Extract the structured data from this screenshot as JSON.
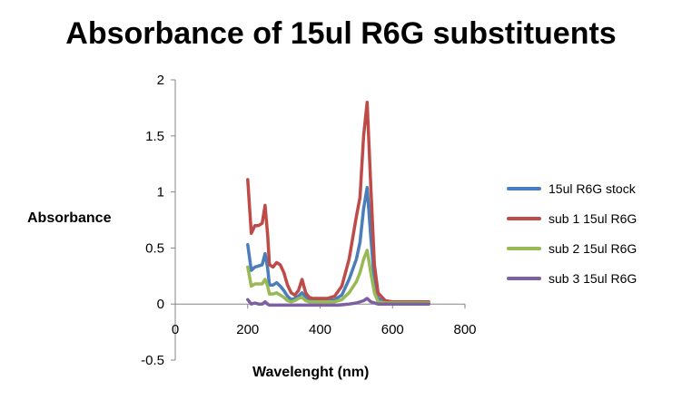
{
  "chart_data": {
    "type": "line",
    "title": "Absorbance of 15ul R6G substituents",
    "xlabel": "Wavelenght (nm)",
    "ylabel": "Absorbance",
    "xlim": [
      0,
      800
    ],
    "ylim": [
      -0.5,
      2
    ],
    "xticks": [
      "0",
      "200",
      "400",
      "600",
      "800"
    ],
    "yticks": [
      "2",
      "1.5",
      "1",
      "0.5",
      "0",
      "-0.5"
    ],
    "grid": false,
    "legend_position": "right",
    "series": [
      {
        "name": "15ul R6G stock",
        "color": "#4a7ebb",
        "points": [
          [
            200,
            0.53
          ],
          [
            210,
            0.3
          ],
          [
            220,
            0.33
          ],
          [
            230,
            0.34
          ],
          [
            240,
            0.35
          ],
          [
            248,
            0.45
          ],
          [
            255,
            0.32
          ],
          [
            260,
            0.17
          ],
          [
            270,
            0.17
          ],
          [
            280,
            0.19
          ],
          [
            290,
            0.16
          ],
          [
            300,
            0.12
          ],
          [
            310,
            0.07
          ],
          [
            320,
            0.04
          ],
          [
            330,
            0.05
          ],
          [
            340,
            0.07
          ],
          [
            350,
            0.1
          ],
          [
            360,
            0.06
          ],
          [
            370,
            0.04
          ],
          [
            380,
            0.03
          ],
          [
            400,
            0.03
          ],
          [
            420,
            0.03
          ],
          [
            440,
            0.04
          ],
          [
            460,
            0.08
          ],
          [
            480,
            0.22
          ],
          [
            500,
            0.4
          ],
          [
            510,
            0.55
          ],
          [
            520,
            0.85
          ],
          [
            530,
            1.04
          ],
          [
            540,
            0.6
          ],
          [
            550,
            0.2
          ],
          [
            560,
            0.05
          ],
          [
            580,
            0.02
          ],
          [
            600,
            0.01
          ],
          [
            650,
            0.01
          ],
          [
            700,
            0.01
          ]
        ]
      },
      {
        "name": "sub 1 15ul R6G",
        "color": "#be4b48",
        "points": [
          [
            200,
            1.11
          ],
          [
            210,
            0.63
          ],
          [
            220,
            0.7
          ],
          [
            230,
            0.7
          ],
          [
            240,
            0.72
          ],
          [
            248,
            0.88
          ],
          [
            255,
            0.62
          ],
          [
            260,
            0.35
          ],
          [
            270,
            0.33
          ],
          [
            280,
            0.37
          ],
          [
            290,
            0.35
          ],
          [
            300,
            0.28
          ],
          [
            310,
            0.17
          ],
          [
            320,
            0.1
          ],
          [
            330,
            0.08
          ],
          [
            340,
            0.12
          ],
          [
            350,
            0.22
          ],
          [
            360,
            0.1
          ],
          [
            370,
            0.06
          ],
          [
            380,
            0.05
          ],
          [
            400,
            0.05
          ],
          [
            420,
            0.05
          ],
          [
            440,
            0.07
          ],
          [
            460,
            0.16
          ],
          [
            480,
            0.4
          ],
          [
            500,
            0.78
          ],
          [
            510,
            0.95
          ],
          [
            520,
            1.5
          ],
          [
            530,
            1.8
          ],
          [
            540,
            1.05
          ],
          [
            550,
            0.35
          ],
          [
            560,
            0.1
          ],
          [
            580,
            0.03
          ],
          [
            600,
            0.02
          ],
          [
            650,
            0.02
          ],
          [
            700,
            0.02
          ]
        ]
      },
      {
        "name": "sub 2 15ul R6G",
        "color": "#98b954",
        "points": [
          [
            200,
            0.33
          ],
          [
            210,
            0.16
          ],
          [
            220,
            0.18
          ],
          [
            230,
            0.18
          ],
          [
            240,
            0.18
          ],
          [
            248,
            0.22
          ],
          [
            255,
            0.16
          ],
          [
            260,
            0.09
          ],
          [
            270,
            0.09
          ],
          [
            280,
            0.1
          ],
          [
            290,
            0.08
          ],
          [
            300,
            0.06
          ],
          [
            310,
            0.03
          ],
          [
            320,
            0.02
          ],
          [
            330,
            0.03
          ],
          [
            340,
            0.05
          ],
          [
            350,
            0.06
          ],
          [
            360,
            0.03
          ],
          [
            370,
            0.02
          ],
          [
            380,
            0.02
          ],
          [
            400,
            0.02
          ],
          [
            420,
            0.02
          ],
          [
            440,
            0.02
          ],
          [
            460,
            0.04
          ],
          [
            480,
            0.1
          ],
          [
            500,
            0.2
          ],
          [
            510,
            0.28
          ],
          [
            520,
            0.4
          ],
          [
            530,
            0.48
          ],
          [
            540,
            0.28
          ],
          [
            550,
            0.1
          ],
          [
            560,
            0.02
          ],
          [
            580,
            0.01
          ],
          [
            600,
            0.01
          ],
          [
            650,
            0.01
          ],
          [
            700,
            0.01
          ]
        ]
      },
      {
        "name": "sub 3 15ul R6G",
        "color": "#7d60a0",
        "points": [
          [
            200,
            0.04
          ],
          [
            210,
            0.0
          ],
          [
            220,
            0.01
          ],
          [
            230,
            0.0
          ],
          [
            240,
            0.0
          ],
          [
            248,
            0.02
          ],
          [
            255,
            0.0
          ],
          [
            260,
            -0.01
          ],
          [
            280,
            -0.01
          ],
          [
            300,
            -0.01
          ],
          [
            350,
            -0.01
          ],
          [
            400,
            -0.01
          ],
          [
            450,
            -0.01
          ],
          [
            480,
            0.0
          ],
          [
            500,
            0.01
          ],
          [
            520,
            0.03
          ],
          [
            530,
            0.05
          ],
          [
            540,
            0.02
          ],
          [
            560,
            0.0
          ],
          [
            600,
            0.0
          ],
          [
            700,
            0.0
          ]
        ]
      }
    ]
  }
}
